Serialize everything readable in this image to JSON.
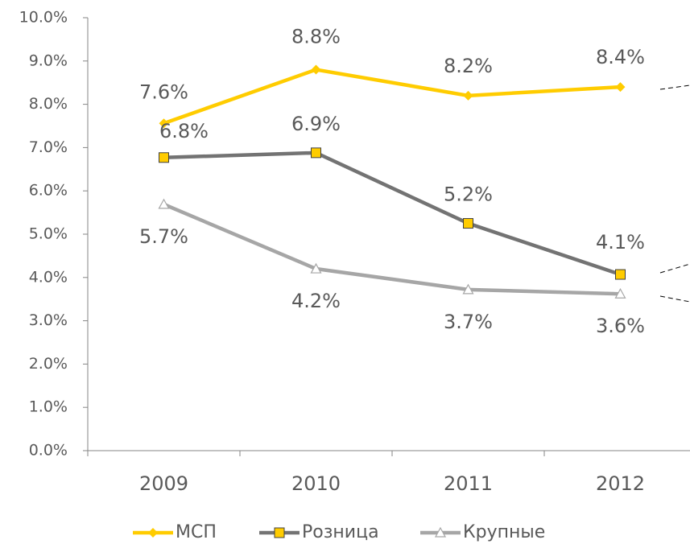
{
  "chart_data": {
    "type": "line",
    "categories": [
      "2009",
      "2010",
      "2011",
      "2012"
    ],
    "series": [
      {
        "name": "МСП",
        "color": "#ffcc00",
        "values": [
          7.56,
          8.8,
          8.2,
          8.4
        ],
        "value_labels": [
          "7.6%",
          "8.8%",
          "8.2%",
          "8.4%"
        ]
      },
      {
        "name": "Розница",
        "color": "#737373",
        "values": [
          6.77,
          6.88,
          5.25,
          4.07
        ],
        "value_labels": [
          "6.8%",
          "6.9%",
          "5.2%",
          "4.1%"
        ]
      },
      {
        "name": "Крупные",
        "color": "#a6a6a6",
        "values": [
          5.69,
          4.2,
          3.72,
          3.62
        ],
        "value_labels": [
          "5.7%",
          "4.2%",
          "3.7%",
          "3.6%"
        ]
      }
    ],
    "ylim": [
      0,
      10
    ],
    "yticks": [
      {
        "value": 0,
        "label": "0.0%"
      },
      {
        "value": 1,
        "label": "1.0%"
      },
      {
        "value": 2,
        "label": "2.0%"
      },
      {
        "value": 3,
        "label": "3.0%"
      },
      {
        "value": 4,
        "label": "4.0%"
      },
      {
        "value": 5,
        "label": "5.0%"
      },
      {
        "value": 6,
        "label": "6.0%"
      },
      {
        "value": 7,
        "label": "7.0%"
      },
      {
        "value": 8,
        "label": "8.0%"
      },
      {
        "value": 9,
        "label": "9.0%"
      },
      {
        "value": 10,
        "label": "10.0%"
      }
    ],
    "legend": "bottom"
  }
}
